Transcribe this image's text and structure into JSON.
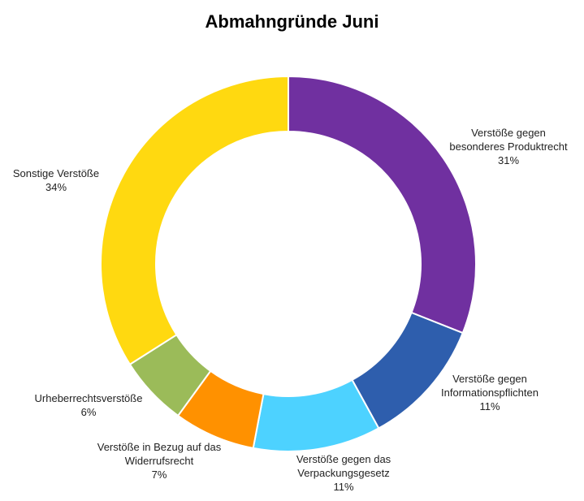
{
  "chart_data": {
    "type": "pie",
    "variant": "donut",
    "title": "Abmahngründe Juni",
    "slices": [
      {
        "label_lines": [
          "Verstöße gegen",
          "besonderes Produktrecht"
        ],
        "value": 31,
        "value_text": "31%",
        "color": "#7030A0"
      },
      {
        "label_lines": [
          "Verstöße gegen",
          "Informationspflichten"
        ],
        "value": 11,
        "value_text": "11%",
        "color": "#2E5EAD"
      },
      {
        "label_lines": [
          "Verstöße gegen das",
          "Verpackungsgesetz"
        ],
        "value": 11,
        "value_text": "11%",
        "color": "#4DD2FF"
      },
      {
        "label_lines": [
          "Verstöße in Bezug auf das",
          "Widerrufsrecht"
        ],
        "value": 7,
        "value_text": "7%",
        "color": "#FF9100"
      },
      {
        "label_lines": [
          "Urheberrechtsverstöße"
        ],
        "value": 6,
        "value_text": "6%",
        "color": "#9BBB59"
      },
      {
        "label_lines": [
          "Sonstige Verstöße"
        ],
        "value": 34,
        "value_text": "34%",
        "color": "#FFD910"
      }
    ]
  }
}
